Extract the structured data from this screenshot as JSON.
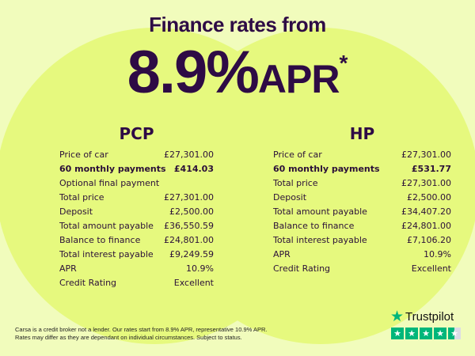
{
  "headline": "Finance rates from",
  "rate": {
    "value": "8.9%",
    "unit": "APR",
    "mark": "*"
  },
  "pcp": {
    "title": "PCP",
    "rows": [
      [
        "Price of car",
        "£27,301.00"
      ],
      [
        "60 monthly payments",
        "£414.03"
      ],
      [
        "Optional final payment",
        ""
      ],
      [
        "Total price",
        "£27,301.00"
      ],
      [
        "Deposit",
        "£2,500.00"
      ],
      [
        "Total amount payable",
        "£36,550.59"
      ],
      [
        "Balance to finance",
        "£24,801.00"
      ],
      [
        "Total interest payable",
        "£9,249.59"
      ],
      [
        "APR",
        "10.9%"
      ],
      [
        "Credit Rating",
        "Excellent"
      ]
    ]
  },
  "hp": {
    "title": "HP",
    "rows": [
      [
        "Price of car",
        "£27,301.00"
      ],
      [
        "60 monthly payments",
        "£531.77"
      ],
      [
        "Total price",
        "£27,301.00"
      ],
      [
        "Deposit",
        "£2,500.00"
      ],
      [
        "Total amount payable",
        "£34,407.20"
      ],
      [
        "Balance to finance",
        "£24,801.00"
      ],
      [
        "Total interest payable",
        "£7,106.20"
      ],
      [
        "APR",
        "10.9%"
      ],
      [
        "Credit Rating",
        "Excellent"
      ]
    ]
  },
  "disclaimer": [
    "Carsa is a credit broker not a lender. Our rates start from 8.9% APR, representative 10.9% APR.",
    "Rates may differ as they are dependant on individual circumstances. Subject to status."
  ],
  "trustpilot": {
    "label": "Trustpilot",
    "rating_stars": 4.5,
    "icon": "star-icon",
    "color": "#00b67a"
  },
  "colors": {
    "text": "#2e0b45",
    "background": "#f1fcbc",
    "circle": "#e6f97e"
  }
}
